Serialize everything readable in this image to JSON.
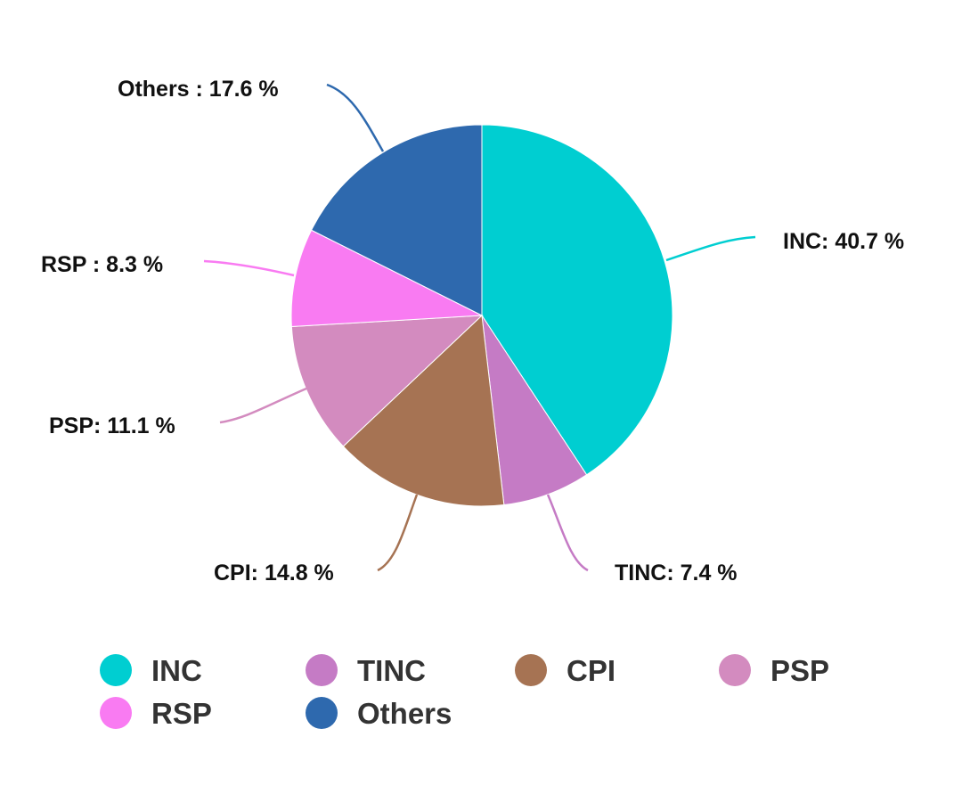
{
  "chart_data": {
    "type": "pie",
    "title": "",
    "categories": [
      "INC",
      "TINC",
      "CPI",
      "PSP",
      "RSP",
      "Others"
    ],
    "values": [
      40.7,
      7.4,
      14.8,
      11.1,
      8.3,
      17.6
    ],
    "unit": "%",
    "colors": [
      "#00CED1",
      "#C57BC5",
      "#A67353",
      "#D38BBF",
      "#F97BF2",
      "#2E69AE"
    ],
    "start_angle": "12 o'clock",
    "direction": "clockwise",
    "legend_position": "bottom",
    "annotations": [
      "INC: 40.7 %",
      "TINC: 7.4 %",
      "CPI: 14.8 %",
      "PSP: 11.1 %",
      "RSP : 8.3 %",
      "Others : 17.6 %"
    ]
  },
  "labels": {
    "inc": "INC: 40.7 %",
    "tinc": "TINC: 7.4 %",
    "cpi": "CPI: 14.8 %",
    "psp": "PSP: 11.1 %",
    "rsp": "RSP : 8.3 %",
    "others": "Others : 17.6 %"
  },
  "legend": {
    "items": [
      {
        "label": "INC",
        "color": "#00CED1"
      },
      {
        "label": "TINC",
        "color": "#C57BC5"
      },
      {
        "label": "CPI",
        "color": "#A67353"
      },
      {
        "label": "PSP",
        "color": "#D38BBF"
      },
      {
        "label": "RSP",
        "color": "#F97BF2"
      },
      {
        "label": "Others",
        "color": "#2E69AE"
      }
    ]
  }
}
